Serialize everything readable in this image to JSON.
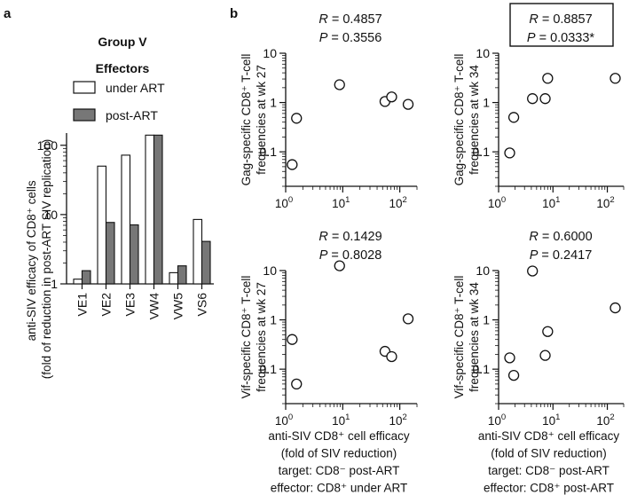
{
  "chart_data": [
    {
      "id": "a",
      "panel_label": "a",
      "type": "bar",
      "title": "Group V",
      "legend_title": "Effectors",
      "legend_placement": "top-right",
      "y_scale": "log",
      "ylim": [
        1,
        150
      ],
      "yticks": [
        {
          "value": 1,
          "label": "1"
        },
        {
          "value": 10,
          "label": "10"
        },
        {
          "value": 100,
          "label": "100"
        }
      ],
      "ylabel_lines": [
        "anti-SIV efficacy of CD8⁺ cells",
        "(fold of reduction in post-ART SIV replication)"
      ],
      "categories": [
        "VE1",
        "VE2",
        "VE3",
        "VW4",
        "VW5",
        "VS6"
      ],
      "series": [
        {
          "name": "under ART",
          "color": "#ffffff",
          "values": [
            1.17,
            50,
            72,
            140,
            1.45,
            8.5
          ]
        },
        {
          "name": "post-ART",
          "color": "#777777",
          "values": [
            1.55,
            7.7,
            7.1,
            140,
            1.82,
            4.1
          ]
        }
      ]
    },
    {
      "id": "b1",
      "panel_label": "b",
      "type": "scatter",
      "x_scale": "log",
      "y_scale": "log",
      "xlim": [
        1,
        200
      ],
      "ylim": [
        0.02,
        10
      ],
      "xticks": [
        {
          "value": 1,
          "base": "10",
          "exp": "0"
        },
        {
          "value": 10,
          "base": "10",
          "exp": "1"
        },
        {
          "value": 100,
          "base": "10",
          "exp": "2"
        }
      ],
      "yticks": [
        {
          "value": 0.1,
          "label": "0.1"
        },
        {
          "value": 1,
          "label": "1"
        },
        {
          "value": 10,
          "label": "10"
        }
      ],
      "ylabel_lines": [
        "Gag-specific CD8⁺ T-cell",
        "frequencies at wk 27"
      ],
      "stats": {
        "r": "R = 0.4857",
        "p": "P = 0.3556",
        "boxed": false
      },
      "points": [
        [
          1.3,
          0.055
        ],
        [
          1.55,
          0.48
        ],
        [
          8.8,
          2.3
        ],
        [
          55,
          1.05
        ],
        [
          72,
          1.3
        ],
        [
          140,
          0.92
        ]
      ]
    },
    {
      "id": "b2",
      "type": "scatter",
      "x_scale": "log",
      "y_scale": "log",
      "xlim": [
        1,
        200
      ],
      "ylim": [
        0.02,
        10
      ],
      "xticks": [
        {
          "value": 1,
          "base": "10",
          "exp": "0"
        },
        {
          "value": 10,
          "base": "10",
          "exp": "1"
        },
        {
          "value": 100,
          "base": "10",
          "exp": "2"
        }
      ],
      "yticks": [
        {
          "value": 0.1,
          "label": "0.1"
        },
        {
          "value": 1,
          "label": "1"
        },
        {
          "value": 10,
          "label": "10"
        }
      ],
      "ylabel_lines": [
        "Gag-specific CD8⁺ T-cell",
        "frequencies at wk 34"
      ],
      "stats": {
        "r": "R = 0.8857",
        "p": "P = 0.0333*",
        "boxed": true
      },
      "points": [
        [
          1.6,
          0.095
        ],
        [
          1.9,
          0.5
        ],
        [
          4.2,
          1.2
        ],
        [
          7.2,
          1.2
        ],
        [
          8.0,
          3.1
        ],
        [
          140,
          3.1
        ]
      ]
    },
    {
      "id": "b3",
      "type": "scatter",
      "x_scale": "log",
      "y_scale": "log",
      "xlim": [
        1,
        200
      ],
      "ylim": [
        0.02,
        10
      ],
      "xticks": [
        {
          "value": 1,
          "base": "10",
          "exp": "0"
        },
        {
          "value": 10,
          "base": "10",
          "exp": "1"
        },
        {
          "value": 100,
          "base": "10",
          "exp": "2"
        }
      ],
      "yticks": [
        {
          "value": 0.1,
          "label": "0.1"
        },
        {
          "value": 1,
          "label": "1"
        },
        {
          "value": 10,
          "label": "10"
        }
      ],
      "ylabel_lines": [
        "Vif-specific CD8⁺ T-cell",
        "frequencies at wk 27"
      ],
      "stats": {
        "r": "R = 0.1429",
        "p": "P = 0.8028",
        "boxed": false
      },
      "points": [
        [
          1.3,
          0.4
        ],
        [
          1.55,
          0.05
        ],
        [
          8.8,
          12.5
        ],
        [
          55,
          0.23
        ],
        [
          72,
          0.18
        ],
        [
          140,
          1.05
        ]
      ],
      "xlabel_lines": [
        "anti-SIV CD8⁺ cell efficacy",
        "(fold of SIV reduction)",
        "target: CD8⁻ post-ART",
        "effector: CD8⁺ under ART"
      ]
    },
    {
      "id": "b4",
      "type": "scatter",
      "x_scale": "log",
      "y_scale": "log",
      "xlim": [
        1,
        200
      ],
      "ylim": [
        0.02,
        10
      ],
      "xticks": [
        {
          "value": 1,
          "base": "10",
          "exp": "0"
        },
        {
          "value": 10,
          "base": "10",
          "exp": "1"
        },
        {
          "value": 100,
          "base": "10",
          "exp": "2"
        }
      ],
      "yticks": [
        {
          "value": 0.1,
          "label": "0.1"
        },
        {
          "value": 1,
          "label": "1"
        },
        {
          "value": 10,
          "label": "10"
        }
      ],
      "ylabel_lines": [
        "Vif-specific CD8⁺ T-cell",
        "frequencies at wk 34"
      ],
      "stats": {
        "r": "R = 0.6000",
        "p": "P = 0.2417",
        "boxed": false
      },
      "points": [
        [
          1.6,
          0.17
        ],
        [
          1.9,
          0.075
        ],
        [
          4.2,
          9.8
        ],
        [
          7.2,
          0.19
        ],
        [
          8.0,
          0.58
        ],
        [
          140,
          1.75
        ]
      ],
      "xlabel_lines": [
        "anti-SIV CD8⁺ cell efficacy",
        "(fold of SIV reduction)",
        "target: CD8⁻ post-ART",
        "effector: CD8⁺ post-ART"
      ]
    }
  ]
}
